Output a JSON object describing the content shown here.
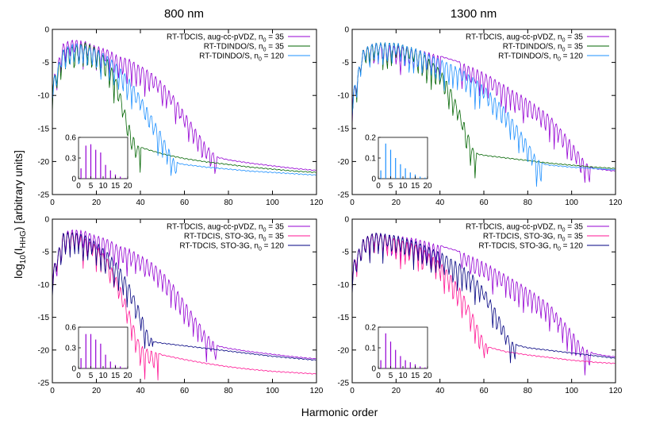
{
  "figure": {
    "column_titles": [
      "800 nm",
      "1300 nm"
    ],
    "xlabel": "Harmonic order",
    "ylabel_prefix": "log",
    "ylabel_sub1": "10",
    "ylabel_mid": "(I",
    "ylabel_sub2": "HHG",
    "ylabel_suffix": ") [arbitrary units]"
  },
  "colors": {
    "violet": "#9400d3",
    "green": "#006400",
    "skyblue": "#1e90ff",
    "pink": "#ff1493",
    "navy": "#000080"
  },
  "chart_data": [
    {
      "type": "line",
      "panel": "top-left",
      "title": "800 nm",
      "xlim": [
        0,
        120
      ],
      "ylim": [
        -25,
        0
      ],
      "xticks": [
        0,
        20,
        40,
        60,
        80,
        100,
        120
      ],
      "yticks": [
        0,
        -5,
        -10,
        -15,
        -20,
        -25
      ],
      "legend_position": "top-right",
      "series": [
        {
          "name": "RT-TDCIS, aug-cc-pVDZ, n",
          "sub": "0",
          "name_tail": " = 35",
          "color": "#9400d3",
          "x": [
            0,
            5,
            10,
            15,
            20,
            25,
            30,
            35,
            40,
            45,
            50,
            55,
            60,
            65,
            70,
            75,
            80,
            90,
            100,
            110,
            120
          ],
          "y": [
            -8,
            -2,
            -1.5,
            -1.8,
            -2.5,
            -3,
            -4,
            -4.5,
            -5.5,
            -6.5,
            -8,
            -10,
            -12.5,
            -15,
            -17.5,
            -19.3,
            -19.7,
            -20.2,
            -20.6,
            -21,
            -21.3
          ]
        },
        {
          "name": "RT-TDINDO/S, n",
          "sub": "0",
          "name_tail": " = 35",
          "color": "#006400",
          "x": [
            0,
            5,
            10,
            15,
            20,
            25,
            28,
            30,
            32,
            34,
            36,
            38,
            40,
            50,
            60,
            70,
            80,
            90,
            100,
            110,
            120
          ],
          "y": [
            -8,
            -3,
            -2.5,
            -2,
            -2.8,
            -4.5,
            -6.5,
            -8.5,
            -11,
            -13.5,
            -15.5,
            -17.3,
            -17.8,
            -18.8,
            -19.5,
            -20,
            -20.4,
            -20.8,
            -21.1,
            -21.4,
            -21.6
          ]
        },
        {
          "name": "RT-TDINDO/S, n",
          "sub": "0",
          "name_tail": " = 120",
          "color": "#1e90ff",
          "x": [
            0,
            5,
            10,
            15,
            20,
            25,
            30,
            35,
            40,
            45,
            50,
            55,
            57,
            60,
            70,
            80,
            90,
            100,
            110,
            120
          ],
          "y": [
            -8,
            -3,
            -2,
            -2.5,
            -3,
            -4,
            -5.5,
            -7.5,
            -10,
            -13,
            -16,
            -19.5,
            -20.2,
            -20.4,
            -20.8,
            -21.1,
            -21.4,
            -21.6,
            -21.8,
            -22
          ]
        }
      ],
      "inset": {
        "xlim": [
          0,
          20
        ],
        "ylim": [
          0,
          0.6
        ],
        "xticks": [
          0,
          5,
          10,
          15,
          20
        ],
        "yticks": [
          0,
          0.3,
          0.6
        ],
        "ytick_labels": [
          "0",
          "0.3",
          "0.6"
        ],
        "peaks_x": [
          1,
          3,
          5,
          7,
          9,
          11,
          13,
          15,
          17,
          19
        ],
        "peaks_y": [
          0.15,
          0.48,
          0.5,
          0.42,
          0.38,
          0.2,
          0.12,
          0.06,
          0.03,
          0.01
        ],
        "color": "#9400d3"
      }
    },
    {
      "type": "line",
      "panel": "top-right",
      "title": "1300 nm",
      "xlim": [
        0,
        120
      ],
      "ylim": [
        -25,
        0
      ],
      "xticks": [
        0,
        20,
        40,
        60,
        80,
        100,
        120
      ],
      "yticks": [
        0,
        -5,
        -10,
        -15,
        -20,
        -25
      ],
      "legend_position": "top-right",
      "series": [
        {
          "name": "RT-TDCIS, aug-cc-pVDZ, n",
          "sub": "0",
          "name_tail": " = 35",
          "color": "#9400d3",
          "x": [
            0,
            5,
            10,
            20,
            30,
            40,
            50,
            60,
            70,
            80,
            90,
            95,
            100,
            105,
            108,
            110,
            115,
            120
          ],
          "y": [
            -10,
            -3,
            -2,
            -2.5,
            -3,
            -4,
            -5,
            -6.5,
            -8.5,
            -10.5,
            -13,
            -15,
            -17,
            -19.5,
            -20.7,
            -21,
            -21.2,
            -21.4
          ]
        },
        {
          "name": "RT-TDINDO/S, n",
          "sub": "0",
          "name_tail": " = 35",
          "color": "#006400",
          "x": [
            0,
            5,
            10,
            20,
            30,
            40,
            45,
            50,
            53,
            55,
            57,
            60,
            70,
            80,
            90,
            100,
            110,
            120
          ],
          "y": [
            -10,
            -3,
            -2,
            -2,
            -3,
            -6,
            -9,
            -13,
            -16,
            -18,
            -18.8,
            -19,
            -19.4,
            -19.8,
            -20.2,
            -20.5,
            -20.8,
            -21
          ]
        },
        {
          "name": "RT-TDINDO/S, n",
          "sub": "0",
          "name_tail": " = 120",
          "color": "#1e90ff",
          "x": [
            0,
            5,
            10,
            20,
            30,
            40,
            50,
            60,
            70,
            75,
            80,
            84,
            87,
            90,
            100,
            110,
            120
          ],
          "y": [
            -10,
            -3,
            -2,
            -2,
            -3,
            -4.5,
            -6,
            -8.5,
            -12,
            -14.5,
            -17,
            -19.5,
            -20.3,
            -20.5,
            -20.8,
            -21,
            -21.2
          ]
        }
      ],
      "inset": {
        "xlim": [
          0,
          20
        ],
        "ylim": [
          0,
          0.2
        ],
        "xticks": [
          0,
          5,
          10,
          15,
          20
        ],
        "yticks": [
          0,
          0.1,
          0.2
        ],
        "ytick_labels": [
          "0",
          "0.1",
          "0.2"
        ],
        "peaks_x": [
          1,
          3,
          5,
          7,
          9,
          11,
          13,
          15,
          17,
          19
        ],
        "peaks_y": [
          0.04,
          0.17,
          0.14,
          0.1,
          0.07,
          0.05,
          0.03,
          0.02,
          0.01,
          0.005
        ],
        "color": "#1e90ff"
      }
    },
    {
      "type": "line",
      "panel": "bottom-left",
      "title": "",
      "xlim": [
        0,
        120
      ],
      "ylim": [
        -25,
        0
      ],
      "xticks": [
        0,
        20,
        40,
        60,
        80,
        100,
        120
      ],
      "yticks": [
        0,
        -5,
        -10,
        -15,
        -20,
        -25
      ],
      "legend_position": "top-right",
      "series": [
        {
          "name": "RT-TDCIS, aug-cc-pVDZ, n",
          "sub": "0",
          "name_tail": " = 35",
          "color": "#9400d3",
          "x": [
            0,
            5,
            10,
            15,
            20,
            25,
            30,
            35,
            40,
            45,
            50,
            55,
            60,
            65,
            70,
            75,
            80,
            90,
            100,
            110,
            120
          ],
          "y": [
            -8,
            -2,
            -1.5,
            -1.8,
            -2.5,
            -3,
            -4,
            -4.5,
            -5.5,
            -6.5,
            -8,
            -10,
            -12.5,
            -15,
            -17.5,
            -19.3,
            -19.7,
            -20.2,
            -20.6,
            -21,
            -21.3
          ]
        },
        {
          "name": "RT-TDCIS, STO-3G, n",
          "sub": "0",
          "name_tail": " = 35",
          "color": "#ff1493",
          "x": [
            0,
            5,
            10,
            15,
            20,
            25,
            30,
            35,
            38,
            40,
            42,
            50,
            60,
            70,
            80,
            90,
            100,
            110,
            120
          ],
          "y": [
            -8,
            -2,
            -2,
            -3,
            -4,
            -6,
            -9.5,
            -14,
            -17.5,
            -19.2,
            -19.7,
            -20.7,
            -21.4,
            -22,
            -22.5,
            -22.9,
            -23.2,
            -23.4,
            -23.6
          ]
        },
        {
          "name": "RT-TDCIS, STO-3G, n",
          "sub": "0",
          "name_tail": " = 120",
          "color": "#000080",
          "x": [
            0,
            5,
            10,
            15,
            20,
            25,
            30,
            35,
            40,
            43,
            46,
            50,
            60,
            70,
            80,
            90,
            100,
            110,
            120
          ],
          "y": [
            -8,
            -2,
            -2,
            -2.5,
            -3.5,
            -5,
            -7,
            -10,
            -14,
            -17,
            -18.7,
            -18.9,
            -19.3,
            -19.7,
            -20.1,
            -20.5,
            -20.9,
            -21.2,
            -21.5
          ]
        }
      ],
      "inset": {
        "xlim": [
          0,
          20
        ],
        "ylim": [
          0,
          0.6
        ],
        "xticks": [
          0,
          5,
          10,
          15,
          20
        ],
        "yticks": [
          0,
          0.3,
          0.6
        ],
        "ytick_labels": [
          "0",
          "0.3",
          "0.6"
        ],
        "peaks_x": [
          1,
          3,
          5,
          7,
          9,
          11,
          13,
          15,
          17,
          19
        ],
        "peaks_y": [
          0.15,
          0.5,
          0.5,
          0.42,
          0.36,
          0.2,
          0.1,
          0.05,
          0.03,
          0.01
        ],
        "color": "#9400d3"
      }
    },
    {
      "type": "line",
      "panel": "bottom-right",
      "title": "",
      "xlim": [
        0,
        120
      ],
      "ylim": [
        -25,
        0
      ],
      "xticks": [
        0,
        20,
        40,
        60,
        80,
        100,
        120
      ],
      "yticks": [
        0,
        -5,
        -10,
        -15,
        -20,
        -25
      ],
      "legend_position": "top-right",
      "series": [
        {
          "name": "RT-TDCIS, aug-cc-pVDZ, n",
          "sub": "0",
          "name_tail": " = 35",
          "color": "#9400d3",
          "x": [
            0,
            5,
            10,
            20,
            30,
            40,
            50,
            60,
            70,
            80,
            90,
            95,
            100,
            105,
            110,
            115,
            120
          ],
          "y": [
            -7,
            -3,
            -2,
            -2.5,
            -3,
            -4,
            -5,
            -6.5,
            -8.5,
            -10.5,
            -13,
            -15,
            -17,
            -19.5,
            -20.5,
            -20.8,
            -21
          ]
        },
        {
          "name": "RT-TDCIS, STO-3G, n",
          "sub": "0",
          "name_tail": " = 35",
          "color": "#ff1493",
          "x": [
            0,
            5,
            10,
            20,
            30,
            40,
            45,
            50,
            55,
            58,
            60,
            62,
            70,
            80,
            90,
            100,
            110,
            120
          ],
          "y": [
            -7,
            -3,
            -2,
            -3,
            -4,
            -6.5,
            -8.5,
            -11,
            -14.5,
            -17,
            -18.5,
            -19.5,
            -20.2,
            -20.7,
            -21.1,
            -21.5,
            -21.8,
            -22
          ]
        },
        {
          "name": "RT-TDCIS, STO-3G, n",
          "sub": "0",
          "name_tail": " = 120",
          "color": "#000080",
          "x": [
            0,
            5,
            10,
            20,
            30,
            40,
            50,
            55,
            60,
            65,
            70,
            72,
            75,
            80,
            90,
            100,
            110,
            120
          ],
          "y": [
            -7,
            -3,
            -2,
            -2.5,
            -3.5,
            -5,
            -7,
            -8.5,
            -10.5,
            -13.5,
            -17,
            -18.5,
            -19.2,
            -19.6,
            -20,
            -20.4,
            -20.8,
            -21.2
          ]
        }
      ],
      "inset": {
        "xlim": [
          0,
          20
        ],
        "ylim": [
          0,
          0.2
        ],
        "xticks": [
          0,
          5,
          10,
          15,
          20
        ],
        "yticks": [
          0,
          0.1,
          0.2
        ],
        "ytick_labels": [
          "0",
          "0.1",
          "0.2"
        ],
        "peaks_x": [
          1,
          3,
          5,
          7,
          9,
          11,
          13,
          15,
          17,
          19
        ],
        "peaks_y": [
          0.04,
          0.17,
          0.13,
          0.09,
          0.06,
          0.04,
          0.03,
          0.02,
          0.01,
          0.005
        ],
        "color": "#9400d3"
      }
    }
  ]
}
